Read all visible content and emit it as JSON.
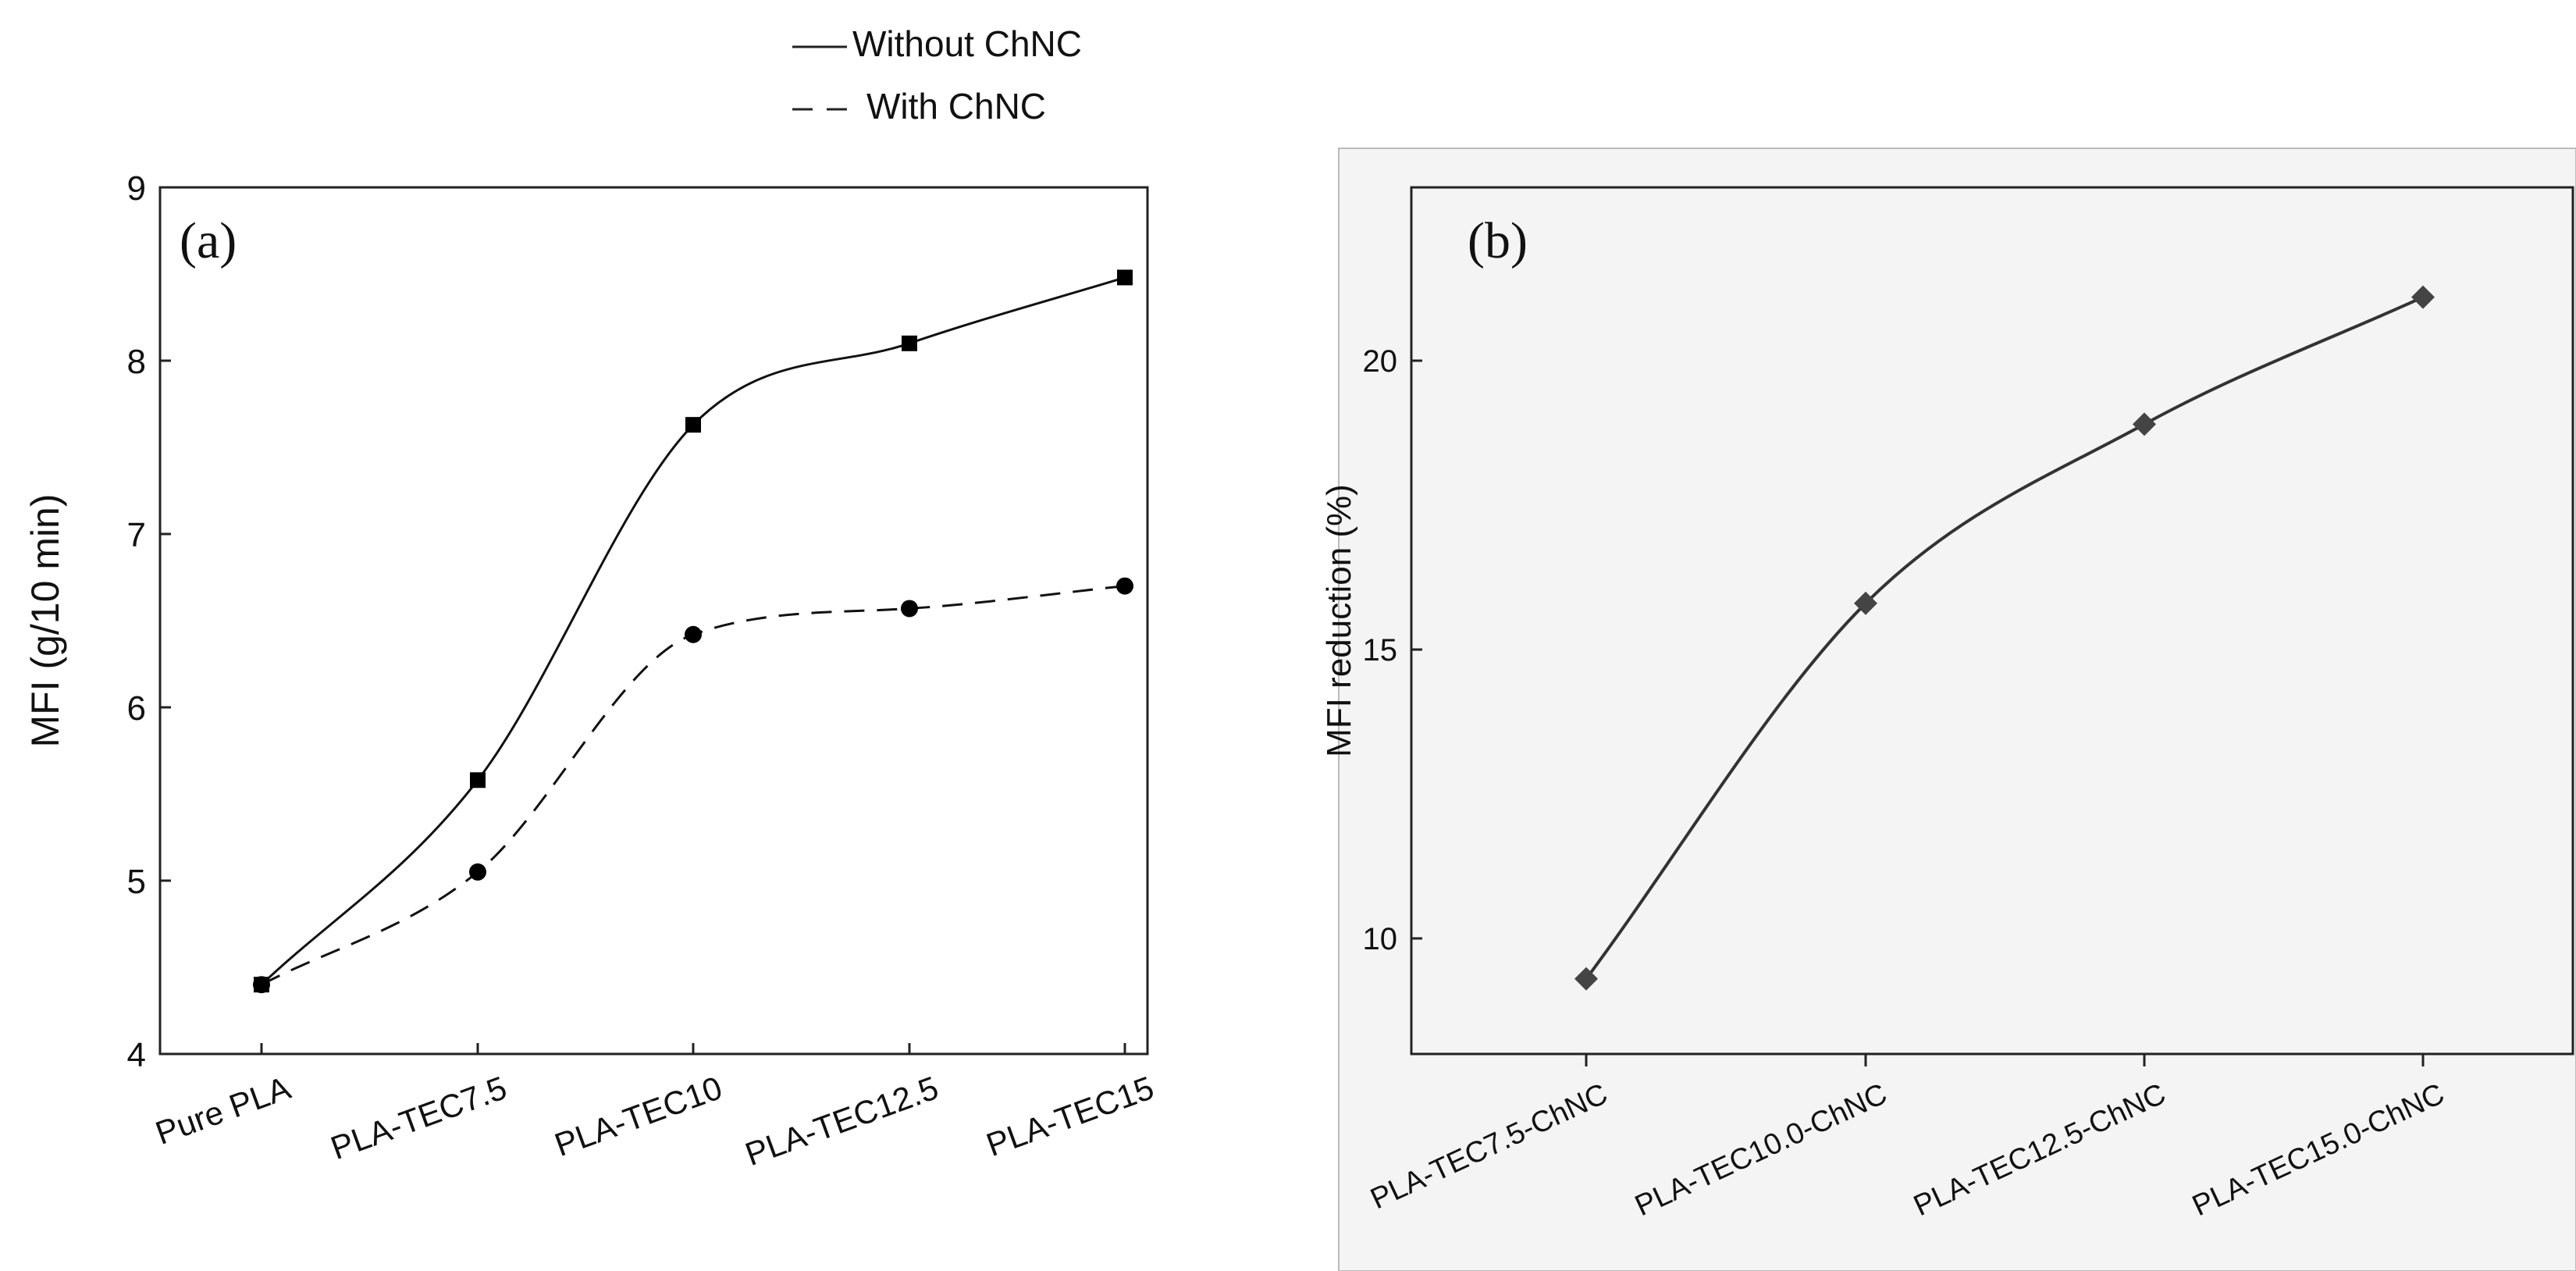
{
  "legend": {
    "items": [
      {
        "label": "Without ChNC",
        "style": "solid"
      },
      {
        "label": "With ChNC",
        "style": "dashed"
      }
    ]
  },
  "chart_data": [
    {
      "type": "line",
      "panel_label": "(a)",
      "title": "",
      "xlabel": "",
      "ylabel": "MFI (g/10 min)",
      "categories": [
        "Pure PLA",
        "PLA-TEC7.5",
        "PLA-TEC10",
        "PLA-TEC12.5",
        "PLA-TEC15"
      ],
      "ylim": [
        4,
        9
      ],
      "yticks": [
        4,
        5,
        6,
        7,
        8,
        9
      ],
      "series": [
        {
          "name": "Without ChNC",
          "marker": "square",
          "line": "solid",
          "values": [
            4.4,
            5.58,
            7.63,
            8.1,
            8.48
          ]
        },
        {
          "name": "With ChNC",
          "marker": "circle",
          "line": "dashed",
          "values": [
            4.4,
            5.05,
            6.42,
            6.57,
            6.7
          ]
        }
      ],
      "grid": false
    },
    {
      "type": "line",
      "panel_label": "(b)",
      "title": "",
      "xlabel": "",
      "ylabel": "MFI reduction (%)",
      "categories": [
        "PLA-TEC7.5-ChNC",
        "PLA-TEC10.0-ChNC",
        "PLA-TEC12.5-ChNC",
        "PLA-TEC15.0-ChNC"
      ],
      "ylim": [
        8,
        23
      ],
      "yticks": [
        10,
        15,
        20
      ],
      "series": [
        {
          "name": "MFI reduction",
          "marker": "diamond",
          "line": "solid",
          "values": [
            9.3,
            15.8,
            18.9,
            21.1
          ]
        }
      ],
      "grid": false
    }
  ]
}
